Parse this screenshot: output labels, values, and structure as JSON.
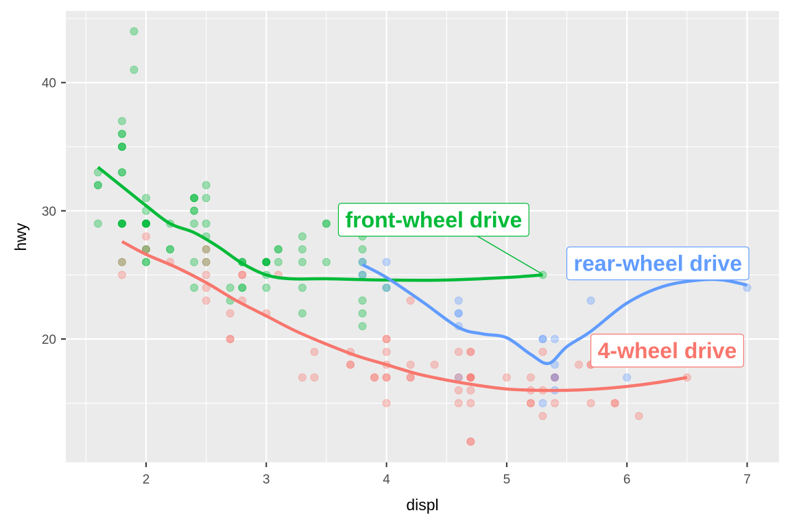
{
  "chart_data": {
    "type": "scatter",
    "title": "",
    "xlabel": "displ",
    "ylabel": "hwy",
    "xlim": [
      1.33,
      7.27
    ],
    "ylim": [
      10.4,
      45.6
    ],
    "x_ticks": [
      2,
      3,
      4,
      5,
      6,
      7
    ],
    "y_ticks": [
      20,
      30,
      40
    ],
    "grid": true,
    "legend": "none (direct labels)",
    "series": [
      {
        "name": "front-wheel drive",
        "drv": "f",
        "color": "#00BA38",
        "points": [
          [
            1.8,
            29
          ],
          [
            1.8,
            29
          ],
          [
            2.0,
            31
          ],
          [
            2.0,
            30
          ],
          [
            2.8,
            26
          ],
          [
            2.8,
            26
          ],
          [
            3.1,
            27
          ],
          [
            1.8,
            26
          ],
          [
            1.8,
            29
          ],
          [
            2.0,
            29
          ],
          [
            2.0,
            29
          ],
          [
            2.8,
            26
          ],
          [
            1.9,
            44
          ],
          [
            2.0,
            29
          ],
          [
            2.0,
            26
          ],
          [
            2.0,
            29
          ],
          [
            2.8,
            24
          ],
          [
            2.4,
            30
          ],
          [
            2.4,
            31
          ],
          [
            3.3,
            26
          ],
          [
            3.3,
            24
          ],
          [
            1.8,
            29
          ],
          [
            2.0,
            27
          ],
          [
            2.2,
            27
          ],
          [
            2.4,
            31
          ],
          [
            3.0,
            26
          ],
          [
            3.0,
            26
          ],
          [
            3.5,
            26
          ],
          [
            1.6,
            33
          ],
          [
            1.6,
            32
          ],
          [
            1.6,
            32
          ],
          [
            1.6,
            29
          ],
          [
            1.8,
            36
          ],
          [
            1.8,
            36
          ],
          [
            1.8,
            35
          ],
          [
            2.0,
            27
          ],
          [
            2.0,
            29
          ],
          [
            2.4,
            24
          ],
          [
            2.4,
            30
          ],
          [
            2.5,
            31
          ],
          [
            2.5,
            32
          ],
          [
            3.5,
            29
          ],
          [
            3.8,
            28
          ],
          [
            3.8,
            27
          ],
          [
            3.8,
            26
          ],
          [
            4.0,
            24
          ],
          [
            3.3,
            28
          ],
          [
            3.3,
            22
          ],
          [
            3.8,
            23
          ],
          [
            3.8,
            22
          ],
          [
            3.8,
            21
          ],
          [
            2.4,
            26
          ],
          [
            2.5,
            27
          ],
          [
            2.5,
            26
          ],
          [
            3.0,
            26
          ],
          [
            3.0,
            25
          ],
          [
            3.5,
            29
          ],
          [
            2.2,
            27
          ],
          [
            2.2,
            29
          ],
          [
            2.4,
            31
          ],
          [
            2.4,
            29
          ],
          [
            3.0,
            26
          ],
          [
            3.0,
            26
          ],
          [
            3.3,
            27
          ],
          [
            1.8,
            33
          ],
          [
            1.8,
            35
          ],
          [
            1.8,
            37
          ],
          [
            1.8,
            35
          ],
          [
            1.8,
            29
          ],
          [
            1.8,
            33
          ],
          [
            1.9,
            41
          ],
          [
            2.0,
            29
          ],
          [
            2.0,
            26
          ],
          [
            2.5,
            28
          ],
          [
            2.5,
            29
          ],
          [
            2.8,
            24
          ],
          [
            2.7,
            24
          ],
          [
            2.7,
            23
          ],
          [
            5.3,
            25
          ],
          [
            3.1,
            27
          ],
          [
            3.1,
            26
          ],
          [
            3.8,
            25
          ],
          [
            3.0,
            24
          ]
        ],
        "smooth": [
          [
            1.6,
            33.4
          ],
          [
            1.8,
            31.9
          ],
          [
            2.0,
            30.4
          ],
          [
            2.2,
            29.0
          ],
          [
            2.4,
            28.3
          ],
          [
            2.6,
            27.2
          ],
          [
            2.8,
            25.9
          ],
          [
            3.0,
            25.0
          ],
          [
            3.2,
            24.7
          ],
          [
            3.5,
            24.7
          ],
          [
            4.0,
            24.6
          ],
          [
            4.5,
            24.6
          ],
          [
            5.0,
            24.8
          ],
          [
            5.3,
            25.0
          ]
        ]
      },
      {
        "name": "rear-wheel drive",
        "drv": "r",
        "color": "#619CFF",
        "points": [
          [
            3.8,
            26
          ],
          [
            3.8,
            25
          ],
          [
            4.0,
            26
          ],
          [
            4.0,
            24
          ],
          [
            4.6,
            23
          ],
          [
            4.6,
            22
          ],
          [
            4.6,
            22
          ],
          [
            5.4,
            17
          ],
          [
            5.4,
            18
          ],
          [
            5.4,
            16
          ],
          [
            5.3,
            15
          ],
          [
            5.3,
            20
          ],
          [
            5.4,
            20
          ],
          [
            5.7,
            23
          ],
          [
            6.0,
            17
          ],
          [
            7.0,
            24
          ],
          [
            4.6,
            21
          ],
          [
            5.4,
            17
          ],
          [
            4.6,
            17
          ],
          [
            5.3,
            20
          ],
          [
            5.4,
            17
          ]
        ],
        "smooth": [
          [
            3.8,
            25.8
          ],
          [
            4.0,
            24.8
          ],
          [
            4.3,
            22.9
          ],
          [
            4.6,
            20.9
          ],
          [
            4.8,
            20.4
          ],
          [
            5.0,
            20.1
          ],
          [
            5.2,
            18.8
          ],
          [
            5.35,
            18.1
          ],
          [
            5.5,
            19.4
          ],
          [
            5.7,
            20.6
          ],
          [
            6.0,
            22.8
          ],
          [
            6.3,
            24.1
          ],
          [
            6.6,
            24.6
          ],
          [
            6.8,
            24.6
          ],
          [
            7.0,
            24.2
          ]
        ]
      },
      {
        "name": "4-wheel drive",
        "drv": "4",
        "color": "#F8766D",
        "points": [
          [
            1.8,
            26
          ],
          [
            1.8,
            25
          ],
          [
            2.0,
            28
          ],
          [
            2.0,
            27
          ],
          [
            2.2,
            26
          ],
          [
            2.5,
            26
          ],
          [
            2.5,
            25
          ],
          [
            2.5,
            24
          ],
          [
            2.5,
            23
          ],
          [
            2.5,
            27
          ],
          [
            2.7,
            22
          ],
          [
            2.7,
            20
          ],
          [
            2.7,
            20
          ],
          [
            2.8,
            25
          ],
          [
            2.8,
            25
          ],
          [
            2.8,
            23
          ],
          [
            3.0,
            22
          ],
          [
            3.1,
            25
          ],
          [
            3.3,
            17
          ],
          [
            3.4,
            19
          ],
          [
            3.4,
            17
          ],
          [
            3.7,
            19
          ],
          [
            3.7,
            18
          ],
          [
            3.9,
            17
          ],
          [
            3.9,
            17
          ],
          [
            4.0,
            20
          ],
          [
            4.0,
            20
          ],
          [
            4.0,
            19
          ],
          [
            4.0,
            17
          ],
          [
            4.0,
            18
          ],
          [
            4.0,
            15
          ],
          [
            4.2,
            23
          ],
          [
            4.2,
            18
          ],
          [
            4.2,
            17
          ],
          [
            4.4,
            18
          ],
          [
            4.6,
            17
          ],
          [
            4.6,
            15
          ],
          [
            4.6,
            16
          ],
          [
            4.7,
            19
          ],
          [
            4.7,
            19
          ],
          [
            4.7,
            17
          ],
          [
            4.7,
            17
          ],
          [
            4.7,
            12
          ],
          [
            4.7,
            12
          ],
          [
            4.7,
            15
          ],
          [
            4.7,
            16
          ],
          [
            5.0,
            17
          ],
          [
            5.2,
            17
          ],
          [
            5.2,
            15
          ],
          [
            5.2,
            15
          ],
          [
            5.3,
            14
          ],
          [
            5.3,
            19
          ],
          [
            5.4,
            15
          ],
          [
            5.6,
            18
          ],
          [
            5.7,
            18
          ],
          [
            5.7,
            15
          ],
          [
            5.9,
            15
          ],
          [
            5.9,
            15
          ],
          [
            6.1,
            14
          ],
          [
            6.5,
            17
          ],
          [
            4.6,
            19
          ],
          [
            4.7,
            17
          ],
          [
            5.2,
            16
          ],
          [
            5.3,
            16
          ],
          [
            4.0,
            17
          ],
          [
            4.2,
            17
          ],
          [
            3.7,
            18
          ],
          [
            4.7,
            17
          ],
          [
            5.4,
            17
          ],
          [
            5.7,
            18
          ]
        ],
        "smooth": [
          [
            1.8,
            27.6
          ],
          [
            2.0,
            26.6
          ],
          [
            2.25,
            25.6
          ],
          [
            2.5,
            24.4
          ],
          [
            2.75,
            23.0
          ],
          [
            3.0,
            21.8
          ],
          [
            3.25,
            20.6
          ],
          [
            3.5,
            19.6
          ],
          [
            3.75,
            18.7
          ],
          [
            4.0,
            18.0
          ],
          [
            4.25,
            17.3
          ],
          [
            4.5,
            16.8
          ],
          [
            4.75,
            16.4
          ],
          [
            5.0,
            16.1
          ],
          [
            5.25,
            16.0
          ],
          [
            5.5,
            16.0
          ],
          [
            5.75,
            16.1
          ],
          [
            6.0,
            16.3
          ],
          [
            6.25,
            16.6
          ],
          [
            6.5,
            17.0
          ]
        ]
      }
    ],
    "annotations": [
      {
        "text": "front-wheel drive",
        "color": "#00BA38",
        "box_x": 3.6,
        "box_y": 29.3,
        "anchor_x": 5.3,
        "anchor_y": 25,
        "segment": true
      },
      {
        "text": "rear-wheel drive",
        "color": "#619CFF",
        "box_x": 5.5,
        "box_y": 25.9
      },
      {
        "text": "4-wheel drive",
        "color": "#F8766D",
        "box_x": 5.7,
        "box_y": 19.1
      }
    ]
  }
}
